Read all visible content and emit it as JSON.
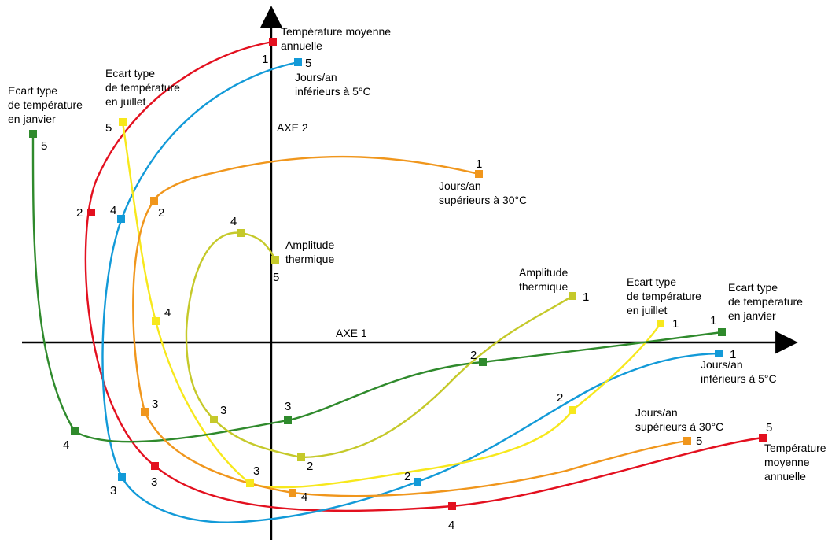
{
  "axes": {
    "axis1_label": "AXE 1",
    "axis2_label": "AXE 2",
    "color": "#000000"
  },
  "variables": [
    {
      "key": "temp_moyenne",
      "color": "#e3101f",
      "start_label": [
        "Température moyenne",
        "annuelle"
      ],
      "end_label": [
        "Température",
        "moyenne",
        "annuelle"
      ],
      "points": [
        "1",
        "2",
        "3",
        "4",
        "5"
      ]
    },
    {
      "key": "jours_inf5",
      "color": "#129ad8",
      "start_label": [
        "Jours/an",
        "inférieurs à 5°C"
      ],
      "end_label": [
        "Jours/an",
        "inférieurs à 5°C"
      ],
      "points": [
        "5",
        "4",
        "3",
        "2",
        "1"
      ]
    },
    {
      "key": "ecart_juillet",
      "color": "#f7e81c",
      "start_label": [
        "Ecart type",
        "de température",
        "en juillet"
      ],
      "end_label": [
        "Ecart type",
        "de température",
        "en juillet"
      ],
      "points": [
        "5",
        "4",
        "3",
        "2",
        "1"
      ]
    },
    {
      "key": "ecart_janvier",
      "color": "#2f8a2c",
      "start_label": [
        "Ecart type",
        "de température",
        "en janvier"
      ],
      "end_label": [
        "Ecart type",
        "de température",
        "en janvier"
      ],
      "points": [
        "5",
        "4",
        "3",
        "2",
        "1"
      ]
    },
    {
      "key": "jours_sup30",
      "color": "#f0961c",
      "start_label": [
        "Jours/an",
        "supérieurs à 30°C"
      ],
      "end_label": [
        "Jours/an",
        "supérieurs à 30°C"
      ],
      "points": [
        "1",
        "2",
        "3",
        "4",
        "5"
      ]
    },
    {
      "key": "amplitude",
      "color": "#c5c92a",
      "start_label": [
        "Amplitude",
        "thermique"
      ],
      "end_label": [
        "Amplitude",
        "thermique"
      ],
      "points": [
        "5",
        "4",
        "3",
        "2",
        "1"
      ]
    }
  ]
}
